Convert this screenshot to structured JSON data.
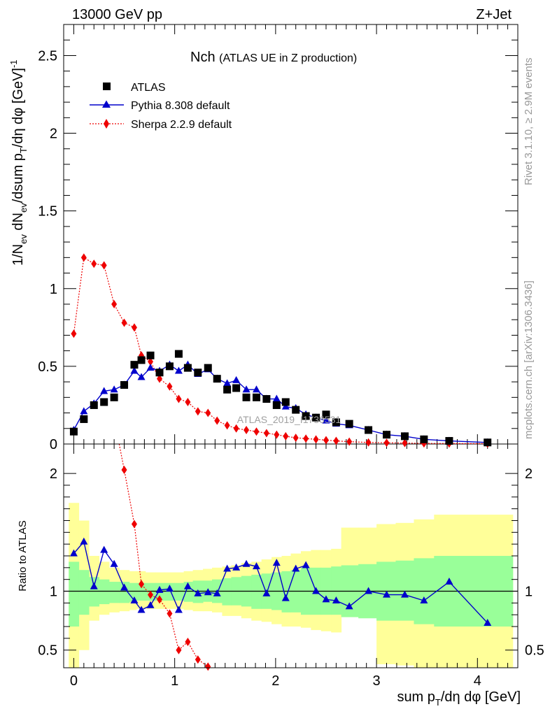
{
  "header": {
    "energy_label": "13000 GeV pp",
    "process_label": "Z+Jet"
  },
  "side": {
    "rivet": "Rivet 3.1.10, ≥ 2.9M events",
    "mcplots": "mcplots.cern.ch [arXiv:1306.3436]"
  },
  "chart_data": [
    {
      "type": "scatter",
      "panel": "main",
      "title": "Nch",
      "subtitle": "(ATLAS UE in Z production)",
      "watermark": "ATLAS_2019_I1736531",
      "ylabel": "1/Nev dNev/dsum pT/dη dφ [GeV]^-1",
      "ylabel_parts": {
        "a": "1/N",
        "b": "ev",
        "c": " dN",
        "d": "ev",
        "e": "/dsum p",
        "f": "T",
        "g": "/dη dφ  [GeV]",
        "h": "-1"
      },
      "xlim": [
        -0.1,
        4.4
      ],
      "ylim": [
        0,
        2.7
      ],
      "yticks": [
        "0",
        "0.5",
        "1",
        "1.5",
        "2",
        "2.5"
      ],
      "legend_placement": "top-left",
      "x": [
        0.0,
        0.1,
        0.2,
        0.3,
        0.4,
        0.5,
        0.6,
        0.7,
        0.8,
        0.9,
        1.0,
        1.1,
        1.2,
        1.3,
        1.4,
        1.5,
        1.6,
        1.7,
        1.8,
        1.9,
        2.0,
        2.1,
        2.2,
        2.3,
        2.4,
        2.5,
        2.6,
        2.7,
        2.8,
        2.9,
        3.0,
        3.1,
        3.2,
        3.3,
        3.4,
        3.5,
        3.7,
        4.1
      ],
      "series": [
        {
          "name": "ATLAS",
          "color": "#000000",
          "marker": "square",
          "x": [
            0.0,
            0.1,
            0.2,
            0.3,
            0.4,
            0.5,
            0.6,
            0.67,
            0.76,
            0.85,
            0.95,
            1.04,
            1.13,
            1.23,
            1.33,
            1.42,
            1.52,
            1.61,
            1.71,
            1.81,
            1.91,
            2.01,
            2.1,
            2.2,
            2.3,
            2.4,
            2.5,
            2.6,
            2.73,
            2.92,
            3.1,
            3.28,
            3.47,
            3.72,
            4.1
          ],
          "values": [
            0.08,
            0.16,
            0.25,
            0.27,
            0.3,
            0.38,
            0.51,
            0.54,
            0.57,
            0.46,
            0.5,
            0.58,
            0.49,
            0.46,
            0.49,
            0.42,
            0.35,
            0.36,
            0.3,
            0.3,
            0.29,
            0.25,
            0.27,
            0.22,
            0.18,
            0.17,
            0.19,
            0.14,
            0.13,
            0.09,
            0.06,
            0.05,
            0.03,
            0.02,
            0.01
          ]
        },
        {
          "name": "Pythia 8.308 default",
          "color": "#0000cc",
          "marker": "triangle",
          "line": "solid",
          "x": [
            0.0,
            0.1,
            0.2,
            0.3,
            0.4,
            0.5,
            0.6,
            0.67,
            0.76,
            0.85,
            0.95,
            1.04,
            1.13,
            1.23,
            1.33,
            1.42,
            1.52,
            1.61,
            1.71,
            1.81,
            1.91,
            2.01,
            2.1,
            2.2,
            2.3,
            2.4,
            2.5,
            2.6,
            2.73,
            2.92,
            3.1,
            3.28,
            3.47,
            3.72,
            4.1
          ],
          "values": [
            0.09,
            0.21,
            0.26,
            0.34,
            0.35,
            0.38,
            0.47,
            0.43,
            0.49,
            0.47,
            0.51,
            0.47,
            0.51,
            0.45,
            0.48,
            0.42,
            0.39,
            0.41,
            0.35,
            0.35,
            0.29,
            0.29,
            0.24,
            0.23,
            0.19,
            0.17,
            0.15,
            0.13,
            0.12,
            0.09,
            0.06,
            0.05,
            0.03,
            0.02,
            0.01
          ]
        },
        {
          "name": "Sherpa 2.2.9 default",
          "color": "#ee0000",
          "marker": "diamond",
          "line": "dotted",
          "x": [
            0.0,
            0.1,
            0.2,
            0.3,
            0.4,
            0.5,
            0.6,
            0.67,
            0.76,
            0.85,
            0.95,
            1.04,
            1.13,
            1.23,
            1.33,
            1.42,
            1.52,
            1.61,
            1.71,
            1.81,
            1.91,
            2.01,
            2.1,
            2.2,
            2.3,
            2.4,
            2.5,
            2.6,
            2.73,
            2.92,
            3.1,
            3.28,
            3.47,
            3.72,
            4.1
          ],
          "values": [
            0.71,
            1.2,
            1.16,
            1.15,
            0.9,
            0.78,
            0.75,
            0.57,
            0.53,
            0.42,
            0.37,
            0.29,
            0.27,
            0.21,
            0.2,
            0.15,
            0.12,
            0.1,
            0.09,
            0.08,
            0.07,
            0.06,
            0.05,
            0.04,
            0.035,
            0.03,
            0.025,
            0.02,
            0.015,
            0.01,
            0.008,
            0.006,
            0.004,
            0.003,
            0.002
          ]
        }
      ]
    },
    {
      "type": "line",
      "panel": "ratio",
      "ylabel": "Ratio to ATLAS",
      "xlabel": "sum pT/dη dφ [GeV]",
      "xlabel_parts": {
        "a": "sum p",
        "b": "T",
        "c": "/dη dφ [GeV]"
      },
      "xlim": [
        -0.1,
        4.4
      ],
      "ylim": [
        0.35,
        2.25
      ],
      "xticks": [
        "0",
        "1",
        "2",
        "3",
        "4"
      ],
      "yticks": [
        "0.5",
        "1",
        "2"
      ],
      "bands": {
        "edges": [
          -0.05,
          0.05,
          0.15,
          0.25,
          0.35,
          0.45,
          0.55,
          0.62,
          0.71,
          0.81,
          0.9,
          1.0,
          1.09,
          1.18,
          1.28,
          1.37,
          1.47,
          1.56,
          1.66,
          1.76,
          1.86,
          1.96,
          2.06,
          2.15,
          2.25,
          2.35,
          2.45,
          2.55,
          2.65,
          2.82,
          3.0,
          3.19,
          3.37,
          3.57,
          3.87,
          4.35
        ],
        "green_low": [
          0.7,
          0.8,
          0.87,
          0.89,
          0.9,
          0.9,
          0.91,
          0.92,
          0.92,
          0.92,
          0.92,
          0.92,
          0.91,
          0.9,
          0.91,
          0.9,
          0.88,
          0.88,
          0.87,
          0.85,
          0.85,
          0.84,
          0.82,
          0.82,
          0.8,
          0.8,
          0.8,
          0.8,
          0.78,
          0.77,
          0.75,
          0.75,
          0.72,
          0.7,
          0.7
        ],
        "green_high": [
          1.25,
          1.18,
          1.12,
          1.1,
          1.08,
          1.08,
          1.07,
          1.07,
          1.07,
          1.07,
          1.07,
          1.07,
          1.08,
          1.09,
          1.09,
          1.1,
          1.11,
          1.12,
          1.13,
          1.14,
          1.15,
          1.16,
          1.17,
          1.18,
          1.2,
          1.2,
          1.2,
          1.21,
          1.22,
          1.23,
          1.25,
          1.26,
          1.28,
          1.3,
          1.3
        ],
        "yellow_low": [
          0.35,
          0.5,
          0.75,
          0.8,
          0.82,
          0.83,
          0.84,
          0.85,
          0.85,
          0.85,
          0.85,
          0.85,
          0.84,
          0.83,
          0.83,
          0.82,
          0.79,
          0.79,
          0.77,
          0.75,
          0.74,
          0.72,
          0.7,
          0.7,
          0.69,
          0.67,
          0.66,
          0.65,
          0.78,
          0.78,
          0.38,
          0.37,
          0.35,
          0.35,
          0.35
        ],
        "yellow_high": [
          1.75,
          1.6,
          1.3,
          1.25,
          1.2,
          1.18,
          1.17,
          1.17,
          1.16,
          1.16,
          1.16,
          1.16,
          1.17,
          1.18,
          1.19,
          1.2,
          1.21,
          1.22,
          1.24,
          1.25,
          1.27,
          1.29,
          1.3,
          1.32,
          1.34,
          1.35,
          1.35,
          1.36,
          1.54,
          1.54,
          1.57,
          1.58,
          1.61,
          1.65,
          1.65
        ]
      },
      "series": [
        {
          "name": "Pythia 8.308 default",
          "color": "#0000cc",
          "x": [
            0.0,
            0.1,
            0.2,
            0.3,
            0.4,
            0.5,
            0.6,
            0.67,
            0.76,
            0.85,
            0.95,
            1.04,
            1.13,
            1.23,
            1.33,
            1.42,
            1.52,
            1.61,
            1.71,
            1.81,
            1.91,
            2.01,
            2.1,
            2.2,
            2.3,
            2.4,
            2.5,
            2.6,
            2.73,
            2.92,
            3.1,
            3.28,
            3.47,
            3.72,
            4.1
          ],
          "values": [
            1.32,
            1.42,
            1.04,
            1.35,
            1.23,
            1.03,
            0.92,
            0.84,
            0.88,
            1.01,
            1.02,
            0.84,
            1.04,
            0.98,
            0.99,
            0.98,
            1.19,
            1.2,
            1.23,
            1.21,
            0.98,
            1.24,
            0.94,
            1.19,
            1.22,
            1.0,
            0.93,
            0.92,
            0.87,
            1.0,
            0.97,
            0.97,
            0.92,
            1.08,
            0.73
          ]
        },
        {
          "name": "Sherpa 2.2.9 default",
          "color": "#ee0000",
          "x": [
            0.45,
            0.5,
            0.6,
            0.67,
            0.76,
            0.85,
            0.95,
            1.04,
            1.13,
            1.23,
            1.33
          ],
          "values": [
            2.35,
            2.03,
            1.57,
            1.06,
            0.97,
            0.93,
            0.81,
            0.5,
            0.57,
            0.42,
            0.36
          ]
        }
      ]
    }
  ]
}
